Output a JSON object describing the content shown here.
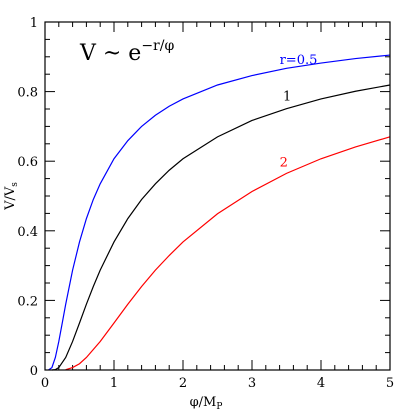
{
  "chart_data": {
    "type": "line",
    "xlabel": "φ/M",
    "xlabel_sub": "P",
    "ylabel": "V/V",
    "ylabel_sub": "s",
    "xlim": [
      0,
      5
    ],
    "ylim": [
      0,
      1
    ],
    "x_ticks": [
      0,
      1,
      2,
      3,
      4,
      5
    ],
    "x_tick_labels": [
      "0",
      "1",
      "2",
      "3",
      "4",
      "5"
    ],
    "y_ticks": [
      0,
      0.2,
      0.4,
      0.6,
      0.8,
      1
    ],
    "y_tick_labels": [
      "0",
      "0.2",
      "0.4",
      "0.6",
      "0.8",
      "1"
    ],
    "annotation": {
      "base": "V ~ e",
      "exponent": "−r/φ"
    },
    "series": [
      {
        "name": "r=0.5",
        "color": "#0000ff",
        "label_at": [
          3.4,
          0.88
        ],
        "x": [
          0.05,
          0.1,
          0.15,
          0.2,
          0.25,
          0.3,
          0.4,
          0.5,
          0.6,
          0.7,
          0.8,
          1.0,
          1.2,
          1.4,
          1.6,
          1.8,
          2.0,
          2.5,
          3.0,
          3.5,
          4.0,
          4.5,
          5.0
        ],
        "values": [
          0.0,
          0.007,
          0.036,
          0.082,
          0.135,
          0.189,
          0.287,
          0.368,
          0.435,
          0.49,
          0.535,
          0.607,
          0.659,
          0.7,
          0.732,
          0.758,
          0.779,
          0.819,
          0.846,
          0.867,
          0.882,
          0.895,
          0.905
        ]
      },
      {
        "name": "1",
        "color": "#000000",
        "label_at": [
          3.45,
          0.775
        ],
        "x": [
          0.1,
          0.15,
          0.2,
          0.3,
          0.4,
          0.5,
          0.6,
          0.7,
          0.8,
          1.0,
          1.2,
          1.4,
          1.6,
          1.8,
          2.0,
          2.5,
          3.0,
          3.5,
          4.0,
          4.5,
          5.0
        ],
        "values": [
          0.0,
          0.001,
          0.007,
          0.036,
          0.082,
          0.135,
          0.189,
          0.24,
          0.287,
          0.368,
          0.435,
          0.49,
          0.535,
          0.574,
          0.607,
          0.67,
          0.717,
          0.751,
          0.779,
          0.801,
          0.819
        ]
      },
      {
        "name": "2",
        "color": "#ff0000",
        "label_at": [
          3.4,
          0.585
        ],
        "x": [
          0.3,
          0.4,
          0.5,
          0.6,
          0.8,
          1.0,
          1.2,
          1.4,
          1.6,
          1.8,
          2.0,
          2.5,
          3.0,
          3.5,
          4.0,
          4.5,
          5.0
        ],
        "values": [
          0.001,
          0.007,
          0.018,
          0.036,
          0.082,
          0.135,
          0.189,
          0.24,
          0.287,
          0.329,
          0.368,
          0.449,
          0.513,
          0.565,
          0.607,
          0.641,
          0.67
        ]
      }
    ]
  }
}
